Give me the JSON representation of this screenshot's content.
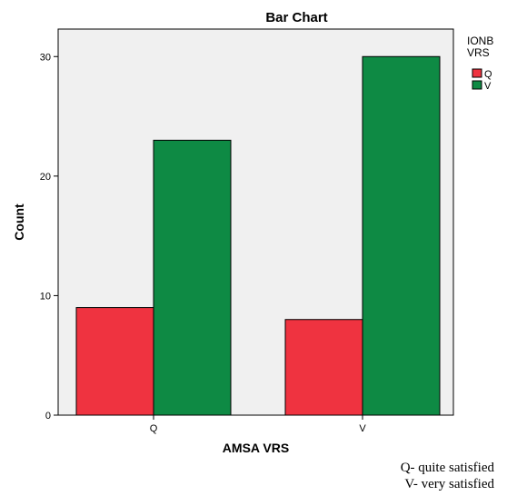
{
  "chart_data": {
    "type": "bar",
    "title": "Bar Chart",
    "xlabel": "AMSA VRS",
    "ylabel": "Count",
    "categories": [
      "Q",
      "V"
    ],
    "series": [
      {
        "name": "Q",
        "values": [
          9,
          8
        ],
        "color": "#ef3340"
      },
      {
        "name": "V",
        "values": [
          23,
          30
        ],
        "color": "#0e8a44"
      }
    ],
    "ylim": [
      0,
      32.3
    ],
    "yticks": [
      0,
      10,
      20,
      30
    ],
    "legend": {
      "title_lines": [
        "IONB",
        "VRS"
      ],
      "placement": "right"
    },
    "grid": false,
    "plot_background": "#f0f0f0"
  },
  "notes": [
    "Q- quite satisfied",
    "V- very satisfied"
  ]
}
